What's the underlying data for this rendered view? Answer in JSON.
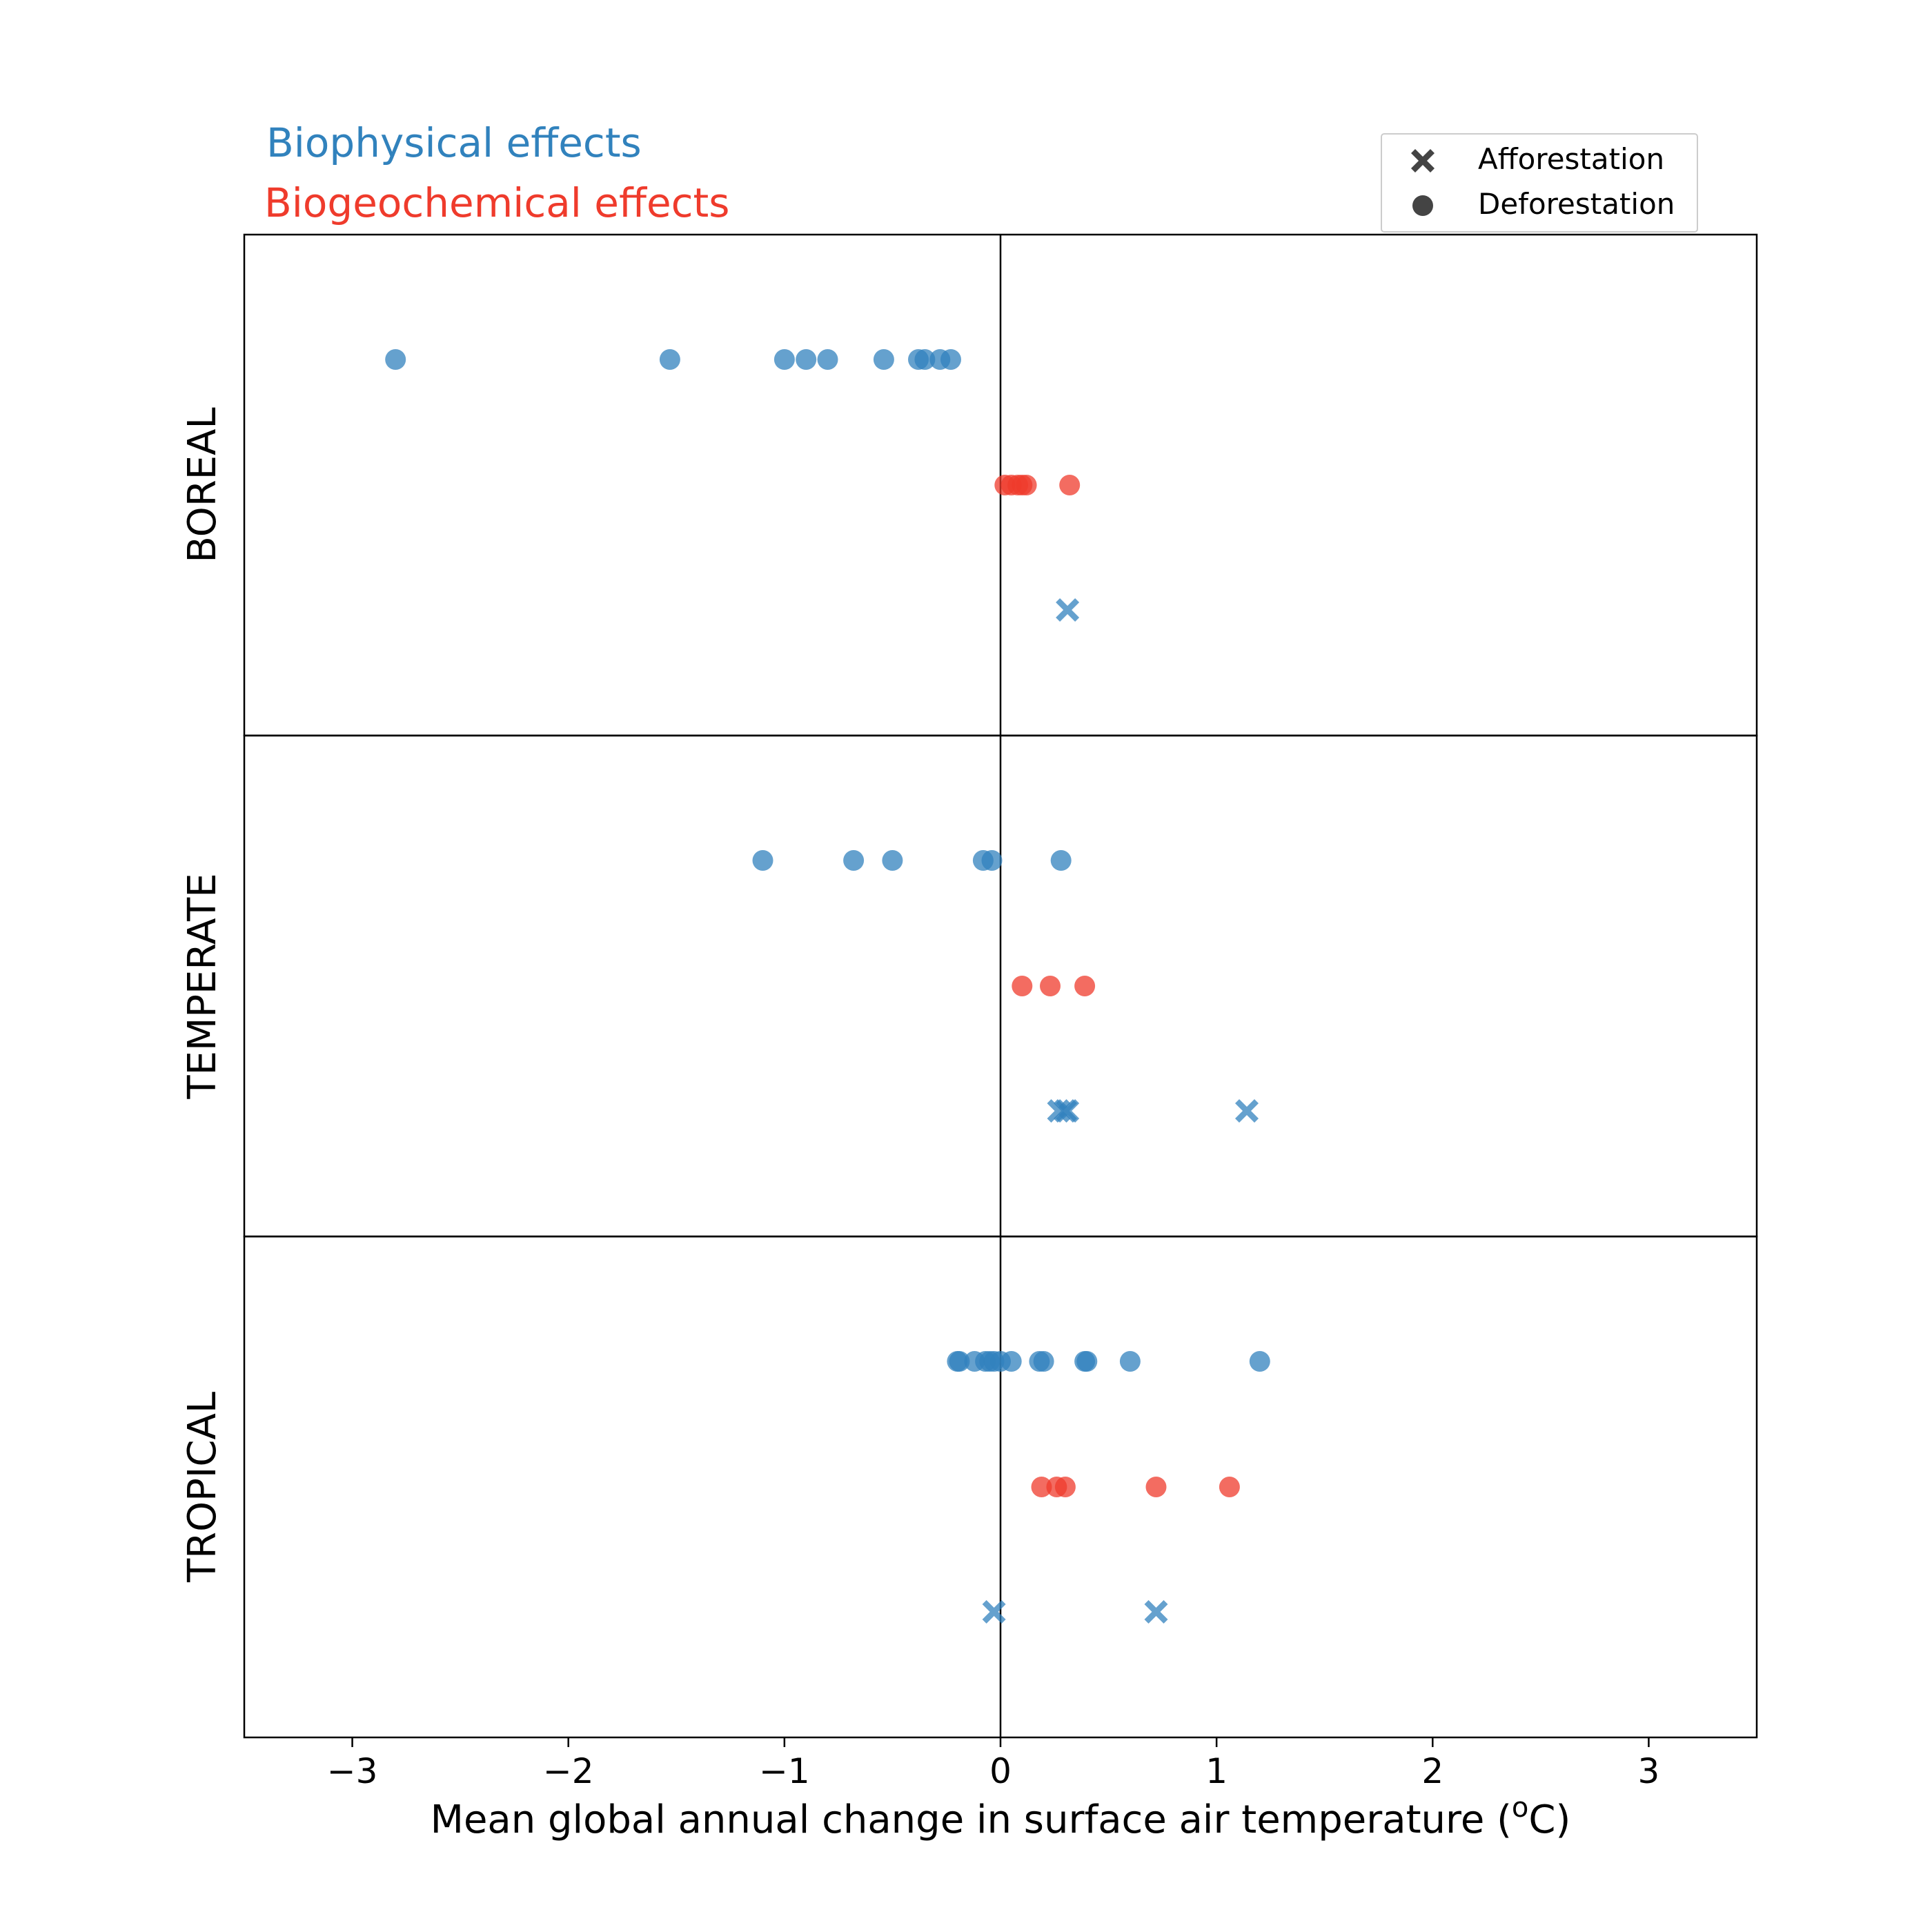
{
  "chart_data": {
    "type": "scatter",
    "xlabel": "Mean global annual change in surface air temperature (",
    "xlabel_sup": "o",
    "xlabel_unit": "C)",
    "xlim": [
      -3.5,
      3.5
    ],
    "xticks": [
      -3,
      -2,
      -1,
      0,
      1,
      2,
      3
    ],
    "xtick_labels": [
      "−3",
      "−2",
      "−1",
      "0",
      "1",
      "2",
      "3"
    ],
    "effect_labels": {
      "biophysical": "Biophysical effects",
      "biogeochemical": "Biogeochemical effects"
    },
    "colors": {
      "biophysical": "#3182bd",
      "biogeochemical": "#ef3b2c"
    },
    "legend": {
      "placement": "top-right",
      "entries": [
        {
          "label": "Afforestation",
          "marker": "x"
        },
        {
          "label": "Deforestation",
          "marker": "circle"
        }
      ]
    },
    "panels": [
      {
        "name": "BOREAL",
        "rows": [
          {
            "effect": "biophysical",
            "marker": "circle",
            "x": [
              -2.8,
              -1.53,
              -1.0,
              -0.9,
              -0.8,
              -0.54,
              -0.38,
              -0.35,
              -0.28,
              -0.23
            ]
          },
          {
            "effect": "biogeochemical",
            "marker": "circle",
            "x": [
              0.02,
              0.05,
              0.08,
              0.1,
              0.12,
              0.32
            ]
          },
          {
            "effect": "biophysical",
            "marker": "x",
            "x": [
              0.31
            ]
          }
        ]
      },
      {
        "name": "TEMPERATE",
        "rows": [
          {
            "effect": "biophysical",
            "marker": "circle",
            "x": [
              -1.1,
              -0.68,
              -0.5,
              -0.08,
              -0.04,
              0.28
            ]
          },
          {
            "effect": "biogeochemical",
            "marker": "circle",
            "x": [
              0.1,
              0.23,
              0.39
            ]
          },
          {
            "effect": "biophysical",
            "marker": "x",
            "x": [
              0.27,
              0.3,
              0.31,
              1.14
            ]
          }
        ]
      },
      {
        "name": "TROPICAL",
        "rows": [
          {
            "effect": "biophysical",
            "marker": "circle",
            "x": [
              -0.2,
              -0.19,
              -0.12,
              -0.07,
              -0.05,
              -0.03,
              0.0,
              0.05,
              0.18,
              0.2,
              0.39,
              0.4,
              0.6,
              1.2
            ]
          },
          {
            "effect": "biogeochemical",
            "marker": "circle",
            "x": [
              0.19,
              0.26,
              0.3,
              0.72,
              1.06
            ]
          },
          {
            "effect": "biophysical",
            "marker": "x",
            "x": [
              -0.03,
              0.72
            ]
          }
        ]
      }
    ]
  }
}
